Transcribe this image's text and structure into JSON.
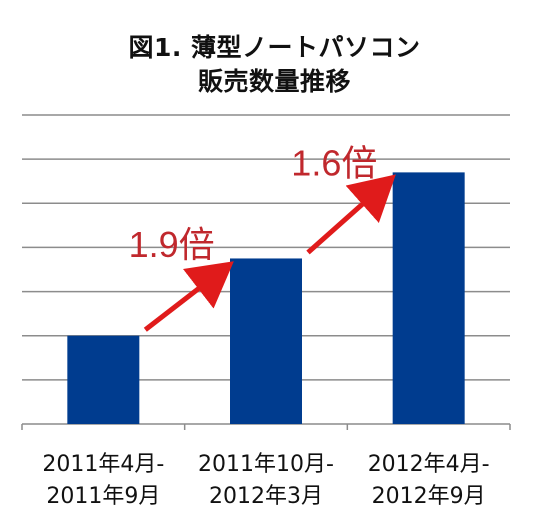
{
  "chart_data": {
    "type": "bar",
    "title_lines": [
      "図1. 薄型ノートパソコン",
      "販売数量推移"
    ],
    "categories": [
      [
        "2011年4月-",
        "2011年9月"
      ],
      [
        "2011年10月-",
        "2012年3月"
      ],
      [
        "2012年4月-",
        "2012年9月"
      ]
    ],
    "values": [
      2.0,
      3.75,
      5.7
    ],
    "ylim": [
      0,
      7
    ],
    "y_tick_labels_shown": false,
    "grid": true,
    "bar_color": "#003c8f",
    "annotations": [
      {
        "text": "1.9倍",
        "from_category": 0,
        "to_category": 1
      },
      {
        "text": "1.6倍",
        "from_category": 1,
        "to_category": 2
      }
    ],
    "annotation_color": "#c0282d",
    "arrow_color": "#e01b1b"
  }
}
